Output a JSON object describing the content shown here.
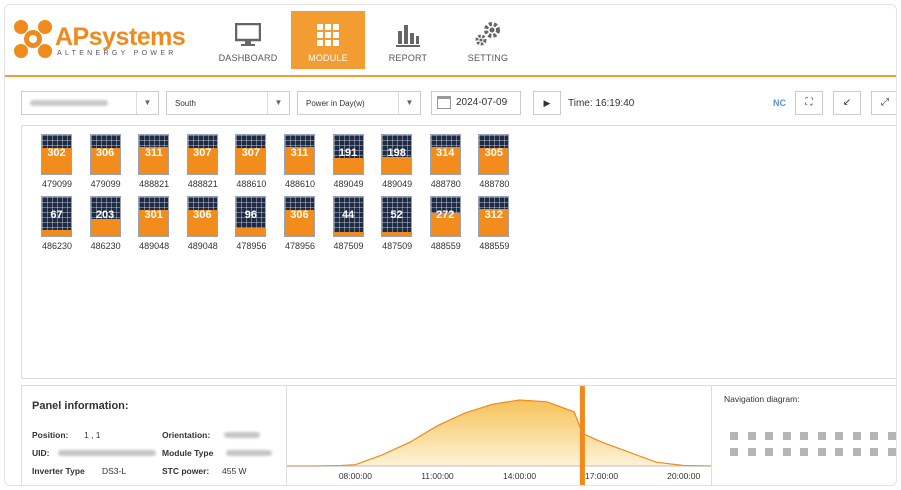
{
  "logo": {
    "brand_ap": "AP",
    "brand_rest": "systems",
    "tagline": "ALTENERGY POWER"
  },
  "nav": [
    {
      "label": "DASHBOARD",
      "icon": "monitor-icon",
      "active": false
    },
    {
      "label": "MODULE",
      "icon": "grid-icon",
      "active": true
    },
    {
      "label": "REPORT",
      "icon": "bar-chart-icon",
      "active": false
    },
    {
      "label": "SETTING",
      "icon": "gears-icon",
      "active": false
    }
  ],
  "toolbar": {
    "orientation_select": "South",
    "mode_select": "Power in Day(w)",
    "date": "2024-07-09",
    "time": "Time: 16:19:40",
    "nc_label": "NC"
  },
  "modules": [
    [
      {
        "value": "302",
        "id": "479099",
        "level": 0.66
      },
      {
        "value": "306",
        "id": "479099",
        "level": 0.67
      },
      {
        "value": "311",
        "id": "488821",
        "level": 0.68
      },
      {
        "value": "307",
        "id": "488821",
        "level": 0.67
      },
      {
        "value": "307",
        "id": "488610",
        "level": 0.67
      },
      {
        "value": "311",
        "id": "488610",
        "level": 0.68
      },
      {
        "value": "191",
        "id": "489049",
        "level": 0.42
      },
      {
        "value": "198",
        "id": "489049",
        "level": 0.43
      },
      {
        "value": "314",
        "id": "488780",
        "level": 0.69
      },
      {
        "value": "305",
        "id": "488780",
        "level": 0.67
      }
    ],
    [
      {
        "value": "67",
        "id": "486230",
        "level": 0.15
      },
      {
        "value": "203",
        "id": "486230",
        "level": 0.44
      },
      {
        "value": "301",
        "id": "489048",
        "level": 0.66
      },
      {
        "value": "306",
        "id": "489048",
        "level": 0.67
      },
      {
        "value": "96",
        "id": "478956",
        "level": 0.21
      },
      {
        "value": "306",
        "id": "478956",
        "level": 0.67
      },
      {
        "value": "44",
        "id": "487509",
        "level": 0.1
      },
      {
        "value": "52",
        "id": "487509",
        "level": 0.11
      },
      {
        "value": "272",
        "id": "488559",
        "level": 0.6
      },
      {
        "value": "312",
        "id": "488559",
        "level": 0.68
      }
    ]
  ],
  "panel_info": {
    "title": "Panel information:",
    "position_label": "Position:",
    "position_value": "1 , 1",
    "uid_label": "UID:",
    "inverter_label": "Inverter Type",
    "inverter_value": "DS3-L",
    "orientation_label": "Orientation:",
    "module_type_label": "Module Type",
    "stc_label": "STC power:",
    "stc_value": "455 W"
  },
  "chart_data": {
    "type": "area",
    "x_ticks": [
      "08:00:00",
      "11:00:00",
      "14:00:00",
      "17:00:00",
      "20:00:00"
    ],
    "x_hours": [
      5.5,
      6.5,
      7.5,
      8,
      9,
      10,
      11,
      12,
      13,
      14,
      15,
      16,
      16.3,
      16.5,
      17,
      18,
      19,
      20,
      21
    ],
    "y": [
      0,
      0,
      2,
      5,
      45,
      95,
      160,
      210,
      245,
      262,
      255,
      215,
      130,
      120,
      95,
      55,
      15,
      2,
      0
    ],
    "cursor_hour": 16.3,
    "colors": {
      "line": "#f08a1c",
      "fill_top": "#f6c25a",
      "fill_bottom": "#fdf3d6",
      "cursor": "#f08a1c"
    }
  },
  "nav_diagram": {
    "title": "Navigation diagram:"
  },
  "colors": {
    "accent": "#f39c32",
    "panel": "#1e2b46",
    "fill": "#f28c1c"
  }
}
